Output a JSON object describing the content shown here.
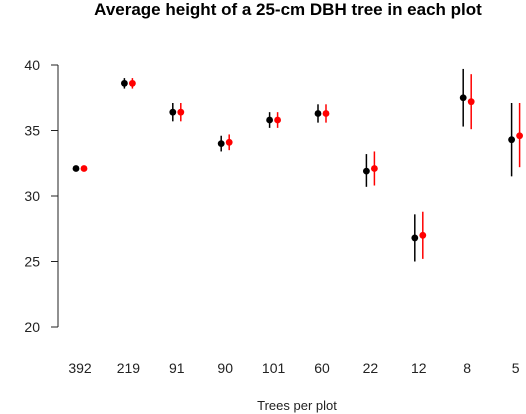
{
  "chart_data": {
    "type": "scatter",
    "title": "Average height of a 25-cm DBH tree in each plot",
    "xlabel": "Trees per plot",
    "ylabel": "",
    "categories": [
      "392",
      "219",
      "91",
      "90",
      "101",
      "60",
      "22",
      "12",
      "8",
      "5"
    ],
    "ylim": [
      20,
      40
    ],
    "yticks": [
      20,
      25,
      30,
      35,
      40
    ],
    "grid": false,
    "legend": "none",
    "series": [
      {
        "color": "#000000",
        "values": [
          32.1,
          38.6,
          36.4,
          34.0,
          35.8,
          36.3,
          31.9,
          26.8,
          37.5,
          34.3
        ],
        "lower": [
          31.9,
          38.2,
          35.7,
          33.4,
          35.2,
          35.6,
          30.7,
          25.0,
          35.3,
          31.5
        ],
        "upper": [
          32.3,
          39.0,
          37.1,
          34.6,
          36.4,
          37.0,
          33.2,
          28.6,
          39.7,
          37.1
        ]
      },
      {
        "color": "#ff0000",
        "values": [
          32.1,
          38.6,
          36.4,
          34.1,
          35.8,
          36.3,
          32.1,
          27.0,
          37.2,
          34.6
        ],
        "lower": [
          31.9,
          38.2,
          35.7,
          33.5,
          35.2,
          35.6,
          30.8,
          25.2,
          35.1,
          32.2
        ],
        "upper": [
          32.3,
          39.0,
          37.1,
          34.7,
          36.4,
          37.0,
          33.4,
          28.8,
          39.3,
          37.1
        ]
      }
    ]
  }
}
